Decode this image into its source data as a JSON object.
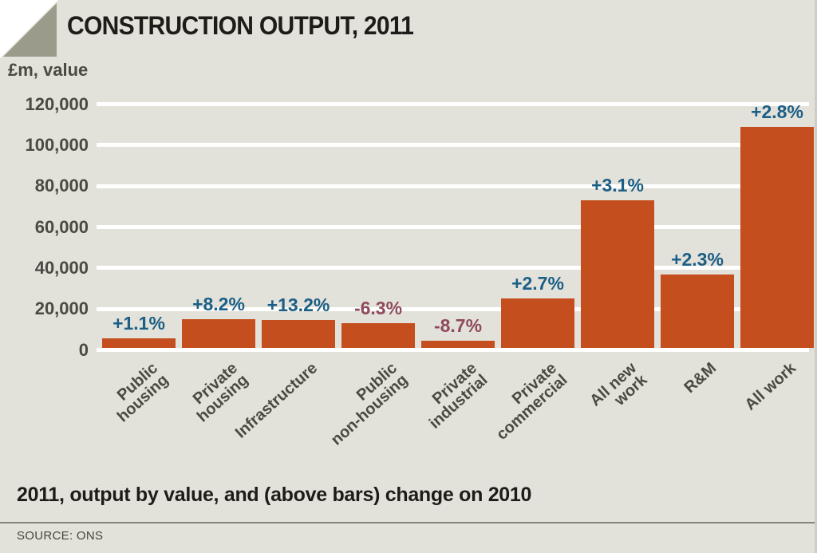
{
  "header": {
    "title": "CONSTRUCTION OUTPUT, 2011"
  },
  "chart_data": {
    "type": "bar",
    "title": "CONSTRUCTION OUTPUT, 2011",
    "unit_label": "£m, value",
    "categories": [
      "Public\nhousing",
      "Private\nhousing",
      "Infrastructure",
      "Public\nnon-housing",
      "Private\nindustrial",
      "Private\ncommercial",
      "All new\nwork",
      "R&M",
      "All work"
    ],
    "values": [
      4500,
      14000,
      13500,
      12000,
      3500,
      24000,
      72000,
      36000,
      108000
    ],
    "change_on_2010": [
      "+1.1%",
      "+8.2%",
      "+13.2%",
      "-6.3%",
      "-8.7%",
      "+2.7%",
      "+3.1%",
      "+2.3%",
      "+2.8%"
    ],
    "y_ticks": [
      {
        "label": "120,000",
        "value": 120000
      },
      {
        "label": "100,000",
        "value": 100000
      },
      {
        "label": "80,000",
        "value": 80000
      },
      {
        "label": "60,000",
        "value": 60000
      },
      {
        "label": "40,000",
        "value": 40000
      },
      {
        "label": "20,000",
        "value": 20000
      },
      {
        "label": "0",
        "value": 0
      }
    ],
    "ylim": [
      0,
      120000
    ],
    "grid": true,
    "legend": false,
    "bar_color": "#c44e1e",
    "positive_change_color": "#1b5e86",
    "negative_change_color": "#8e4a5a"
  },
  "footer": {
    "caption": "2011, output by value, and (above bars) change on 2010",
    "source": "SOURCE: ONS"
  },
  "colors": {
    "page_background": "#ffffff",
    "panel_background": "#e3e2da",
    "gridline": "#ffffff",
    "corner_triangle": "#9b9b8b",
    "title_text": "#1d1c19",
    "axis_text": "#4a4942"
  }
}
